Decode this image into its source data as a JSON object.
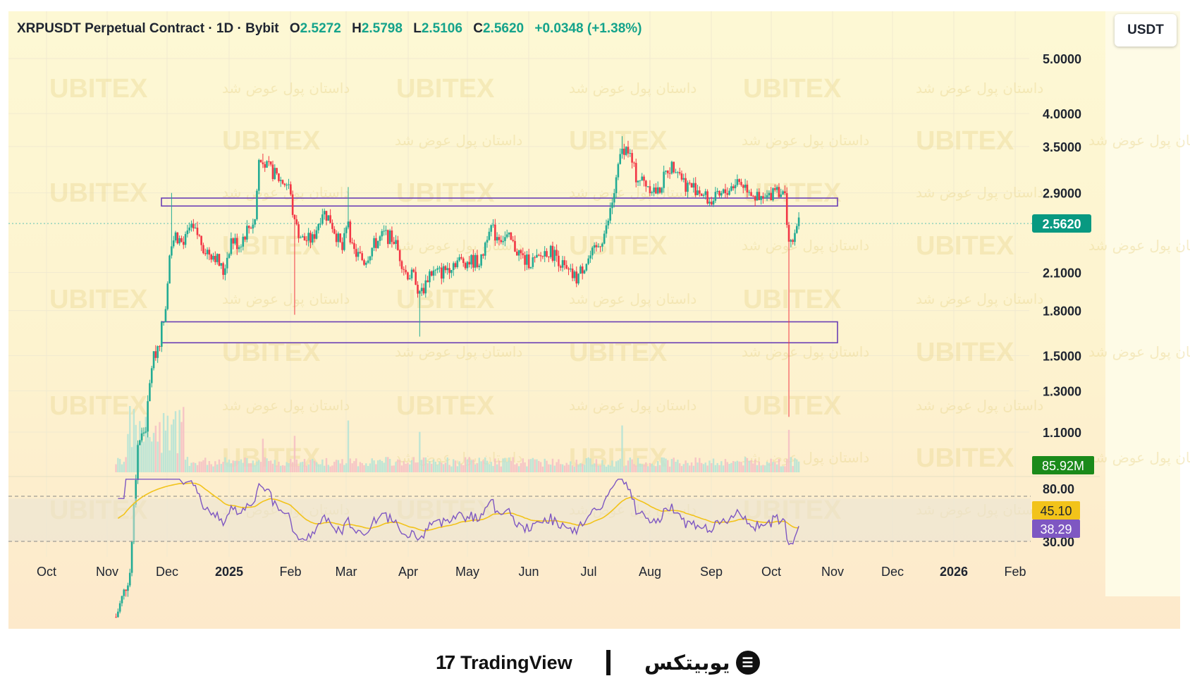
{
  "header": {
    "title": "XRPUSDT Perpetual Contract · 1D · Bybit",
    "open_label": "O",
    "open": "2.5272",
    "high_label": "H",
    "high": "2.5798",
    "low_label": "L",
    "low": "2.5106",
    "close_label": "C",
    "close": "2.5620",
    "change": "+0.0348 (+1.38%)"
  },
  "currency": "USDT",
  "footer": {
    "tradingview": "TradingView",
    "ubitex": "یوبیتکس"
  },
  "watermark": {
    "brand": "UBITEX",
    "slogan": "داستان پول عوض شد"
  },
  "colors": {
    "up": "#22ab94",
    "down": "#f23645",
    "zone": "#6a3fb5",
    "rsi": "#7e57c2",
    "rsi_ma": "#f2c31a",
    "last_price": "#089981",
    "volume_tag": "#1a8a1a"
  },
  "chart_data": {
    "type": "candlestick",
    "scale": "log",
    "price_axis_labels": [
      "5.0000",
      "4.0000",
      "3.5000",
      "2.9000",
      "2.1000",
      "1.8000",
      "1.5000",
      "1.3000",
      "1.1000"
    ],
    "time_axis_labels": [
      "Oct",
      "Nov",
      "Dec",
      "2025",
      "Feb",
      "Mar",
      "Apr",
      "May",
      "Jun",
      "Jul",
      "Aug",
      "Sep",
      "Oct",
      "Nov",
      "Dec",
      "2026",
      "Feb"
    ],
    "last_price": "2.5620",
    "volume_label": "85.92M",
    "zones": [
      {
        "low": 2.75,
        "high": 2.84
      },
      {
        "low": 1.58,
        "high": 1.72
      }
    ],
    "price_path": [
      [
        "2024-11-05",
        0.52
      ],
      [
        "2024-11-12",
        0.62
      ],
      [
        "2024-11-16",
        1.05
      ],
      [
        "2024-11-20",
        1.12
      ],
      [
        "2024-11-23",
        1.45
      ],
      [
        "2024-11-27",
        1.6
      ],
      [
        "2024-11-30",
        1.85
      ],
      [
        "2024-12-02",
        2.3
      ],
      [
        "2024-12-05",
        2.45
      ],
      [
        "2024-12-09",
        2.35
      ],
      [
        "2024-12-12",
        2.5
      ],
      [
        "2024-12-16",
        2.45
      ],
      [
        "2024-12-20",
        2.3
      ],
      [
        "2024-12-25",
        2.25
      ],
      [
        "2024-12-29",
        2.1
      ],
      [
        "2025-01-02",
        2.4
      ],
      [
        "2025-01-06",
        2.35
      ],
      [
        "2025-01-10",
        2.5
      ],
      [
        "2025-01-14",
        2.6
      ],
      [
        "2025-01-16",
        3.3
      ],
      [
        "2025-01-19",
        3.25
      ],
      [
        "2025-01-23",
        3.15
      ],
      [
        "2025-01-27",
        3.05
      ],
      [
        "2025-01-31",
        3.0
      ],
      [
        "2025-02-03",
        2.55
      ],
      [
        "2025-02-07",
        2.4
      ],
      [
        "2025-02-12",
        2.4
      ],
      [
        "2025-02-17",
        2.7
      ],
      [
        "2025-02-21",
        2.6
      ],
      [
        "2025-02-27",
        2.3
      ],
      [
        "2025-03-02",
        2.6
      ],
      [
        "2025-03-04",
        2.3
      ],
      [
        "2025-03-10",
        2.2
      ],
      [
        "2025-03-15",
        2.35
      ],
      [
        "2025-03-20",
        2.45
      ],
      [
        "2025-03-25",
        2.4
      ],
      [
        "2025-03-31",
        2.1
      ],
      [
        "2025-04-05",
        2.05
      ],
      [
        "2025-04-07",
        1.9
      ],
      [
        "2025-04-12",
        2.1
      ],
      [
        "2025-04-18",
        2.1
      ],
      [
        "2025-04-25",
        2.2
      ],
      [
        "2025-05-01",
        2.2
      ],
      [
        "2025-05-08",
        2.2
      ],
      [
        "2025-05-12",
        2.55
      ],
      [
        "2025-05-15",
        2.45
      ],
      [
        "2025-05-22",
        2.4
      ],
      [
        "2025-05-30",
        2.2
      ],
      [
        "2025-06-05",
        2.2
      ],
      [
        "2025-06-10",
        2.3
      ],
      [
        "2025-06-15",
        2.25
      ],
      [
        "2025-06-20",
        2.1
      ],
      [
        "2025-06-25",
        2.05
      ],
      [
        "2025-06-30",
        2.2
      ],
      [
        "2025-07-05",
        2.3
      ],
      [
        "2025-07-10",
        2.5
      ],
      [
        "2025-07-14",
        2.9
      ],
      [
        "2025-07-18",
        3.5
      ],
      [
        "2025-07-21",
        3.45
      ],
      [
        "2025-07-25",
        3.1
      ],
      [
        "2025-07-31",
        3.0
      ],
      [
        "2025-08-05",
        2.9
      ],
      [
        "2025-08-10",
        3.2
      ],
      [
        "2025-08-14",
        3.25
      ],
      [
        "2025-08-19",
        3.0
      ],
      [
        "2025-08-25",
        2.95
      ],
      [
        "2025-08-31",
        2.8
      ],
      [
        "2025-09-05",
        2.85
      ],
      [
        "2025-09-10",
        2.95
      ],
      [
        "2025-09-14",
        3.05
      ],
      [
        "2025-09-20",
        2.95
      ],
      [
        "2025-09-25",
        2.8
      ],
      [
        "2025-09-30",
        2.85
      ],
      [
        "2025-10-03",
        3.0
      ],
      [
        "2025-10-08",
        2.85
      ],
      [
        "2025-10-10",
        2.4
      ],
      [
        "2025-10-11",
        2.35
      ],
      [
        "2025-10-14",
        2.48
      ],
      [
        "2025-10-15",
        2.562
      ]
    ],
    "spikes": [
      [
        "2024-12-03",
        2.9
      ],
      [
        "2025-01-18",
        3.4
      ],
      [
        "2025-02-03",
        1.77
      ],
      [
        "2025-03-02",
        2.97
      ],
      [
        "2025-04-07",
        1.62
      ],
      [
        "2025-07-18",
        3.65
      ],
      [
        "2025-10-10",
        1.17
      ]
    ],
    "rsi_pane": {
      "levels": [
        "80.00",
        "30.00"
      ],
      "rsi_ma": "45.10",
      "rsi": "38.29"
    }
  }
}
